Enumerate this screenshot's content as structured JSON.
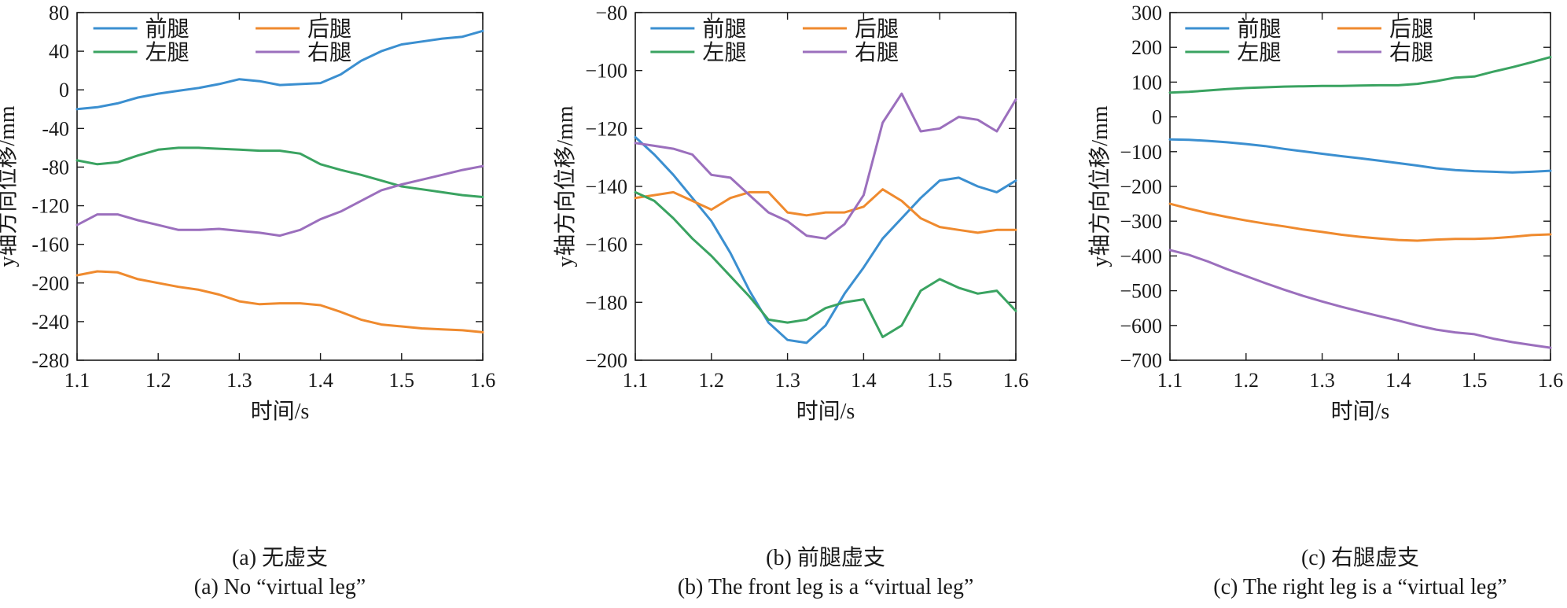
{
  "colors": {
    "blue": "#3b8fd0",
    "orange": "#ef8a2e",
    "green": "#3aa361",
    "purple": "#9b6fbd"
  },
  "chart_data": [
    {
      "type": "line",
      "xlabel": "时间/s",
      "ylabel": "y轴方向位移/mm",
      "xlim": [
        1.1,
        1.6
      ],
      "ylim": [
        -280,
        80
      ],
      "xticks": [
        "1.1",
        "1.2",
        "1.3",
        "1.4",
        "1.5",
        "1.6"
      ],
      "yticks": [
        "80",
        "40",
        "0",
        "-40",
        "-80",
        "-120",
        "-160",
        "-200",
        "-240",
        "-280"
      ],
      "legend_position": "top",
      "caption_cn": "(a) 无虚支",
      "caption_en": "(a) No “virtual leg”",
      "x": [
        1.1,
        1.125,
        1.15,
        1.175,
        1.2,
        1.225,
        1.25,
        1.275,
        1.3,
        1.325,
        1.35,
        1.375,
        1.4,
        1.425,
        1.45,
        1.475,
        1.5,
        1.525,
        1.55,
        1.575,
        1.6
      ],
      "series": [
        {
          "name": "前腿",
          "color": "#3b8fd0",
          "values": [
            -20,
            -18,
            -14,
            -8,
            -4,
            -1,
            2,
            6,
            11,
            9,
            5,
            6,
            7,
            16,
            30,
            40,
            47,
            50,
            53,
            55,
            61
          ]
        },
        {
          "name": "后腿",
          "color": "#ef8a2e",
          "values": [
            -192,
            -188,
            -189,
            -196,
            -200,
            -204,
            -207,
            -212,
            -219,
            -222,
            -221,
            -221,
            -223,
            -230,
            -238,
            -243,
            -245,
            -247,
            -248,
            -249,
            -251
          ]
        },
        {
          "name": "左腿",
          "color": "#3aa361",
          "values": [
            -73,
            -77,
            -75,
            -68,
            -62,
            -60,
            -60,
            -61,
            -62,
            -63,
            -63,
            -66,
            -77,
            -83,
            -88,
            -94,
            -100,
            -103,
            -106,
            -109,
            -111
          ]
        },
        {
          "name": "右腿",
          "color": "#9b6fbd",
          "values": [
            -140,
            -129,
            -129,
            -135,
            -140,
            -145,
            -145,
            -144,
            -146,
            -148,
            -151,
            -145,
            -134,
            -126,
            -115,
            -104,
            -98,
            -93,
            -88,
            -83,
            -79
          ]
        }
      ]
    },
    {
      "type": "line",
      "xlabel": "时间/s",
      "ylabel": "y轴方向位移/mm",
      "xlim": [
        1.1,
        1.6
      ],
      "ylim": [
        -200,
        -80
      ],
      "xticks": [
        "1.1",
        "1.2",
        "1.3",
        "1.4",
        "1.5",
        "1.6"
      ],
      "yticks": [
        "−80",
        "−100",
        "−120",
        "−140",
        "−160",
        "−180",
        "−200"
      ],
      "legend_position": "top",
      "caption_cn": "(b) 前腿虚支",
      "caption_en": "(b) The front leg is a “virtual leg”",
      "x": [
        1.1,
        1.125,
        1.15,
        1.175,
        1.2,
        1.225,
        1.25,
        1.275,
        1.3,
        1.325,
        1.35,
        1.375,
        1.4,
        1.425,
        1.45,
        1.475,
        1.5,
        1.525,
        1.55,
        1.575,
        1.6
      ],
      "series": [
        {
          "name": "前腿",
          "color": "#3b8fd0",
          "values": [
            -123,
            -129,
            -136,
            -144,
            -152,
            -163,
            -176,
            -187,
            -193,
            -194,
            -188,
            -177,
            -168,
            -158,
            -151,
            -144,
            -138,
            -137,
            -140,
            -142,
            -138
          ]
        },
        {
          "name": "后腿",
          "color": "#ef8a2e",
          "values": [
            -144,
            -143,
            -142,
            -145,
            -148,
            -144,
            -142,
            -142,
            -149,
            -150,
            -149,
            -149,
            -147,
            -141,
            -145,
            -151,
            -154,
            -155,
            -156,
            -155,
            -155
          ]
        },
        {
          "name": "左腿",
          "color": "#3aa361",
          "values": [
            -142,
            -145,
            -151,
            -158,
            -164,
            -171,
            -178,
            -186,
            -187,
            -186,
            -182,
            -180,
            -179,
            -192,
            -188,
            -176,
            -172,
            -175,
            -177,
            -176,
            -183
          ]
        },
        {
          "name": "右腿",
          "color": "#9b6fbd",
          "values": [
            -125,
            -126,
            -127,
            -129,
            -136,
            -137,
            -143,
            -149,
            -152,
            -157,
            -158,
            -153,
            -143,
            -118,
            -108,
            -121,
            -120,
            -116,
            -117,
            -121,
            -110
          ]
        }
      ]
    },
    {
      "type": "line",
      "xlabel": "时间/s",
      "ylabel": "y轴方向位移/mm",
      "xlim": [
        1.1,
        1.6
      ],
      "ylim": [
        -700,
        300
      ],
      "xticks": [
        "1.1",
        "1.2",
        "1.3",
        "1.4",
        "1.5",
        "1.6"
      ],
      "yticks": [
        "300",
        "200",
        "100",
        "0",
        "−100",
        "−200",
        "−300",
        "−400",
        "−500",
        "−600",
        "−700"
      ],
      "legend_position": "top",
      "caption_cn": "(c) 右腿虚支",
      "caption_en": "(c) The right leg is a “virtual leg”",
      "x": [
        1.1,
        1.125,
        1.15,
        1.175,
        1.2,
        1.225,
        1.25,
        1.275,
        1.3,
        1.325,
        1.35,
        1.375,
        1.4,
        1.425,
        1.45,
        1.475,
        1.5,
        1.525,
        1.55,
        1.575,
        1.6
      ],
      "series": [
        {
          "name": "前腿",
          "color": "#3b8fd0",
          "values": [
            -65,
            -66,
            -69,
            -73,
            -78,
            -84,
            -92,
            -99,
            -106,
            -113,
            -119,
            -126,
            -133,
            -140,
            -148,
            -153,
            -156,
            -158,
            -160,
            -158,
            -155
          ]
        },
        {
          "name": "后腿",
          "color": "#ef8a2e",
          "values": [
            -250,
            -264,
            -277,
            -288,
            -298,
            -307,
            -315,
            -324,
            -331,
            -339,
            -345,
            -350,
            -354,
            -356,
            -353,
            -351,
            -351,
            -349,
            -345,
            -340,
            -338
          ]
        },
        {
          "name": "左腿",
          "color": "#3aa361",
          "values": [
            70,
            72,
            76,
            80,
            83,
            85,
            87,
            88,
            89,
            89,
            90,
            91,
            91,
            95,
            103,
            113,
            116,
            130,
            143,
            157,
            172
          ]
        },
        {
          "name": "右腿",
          "color": "#9b6fbd",
          "values": [
            -383,
            -397,
            -416,
            -438,
            -458,
            -478,
            -497,
            -515,
            -531,
            -546,
            -560,
            -573,
            -586,
            -600,
            -612,
            -620,
            -625,
            -638,
            -648,
            -656,
            -664
          ]
        }
      ]
    }
  ]
}
